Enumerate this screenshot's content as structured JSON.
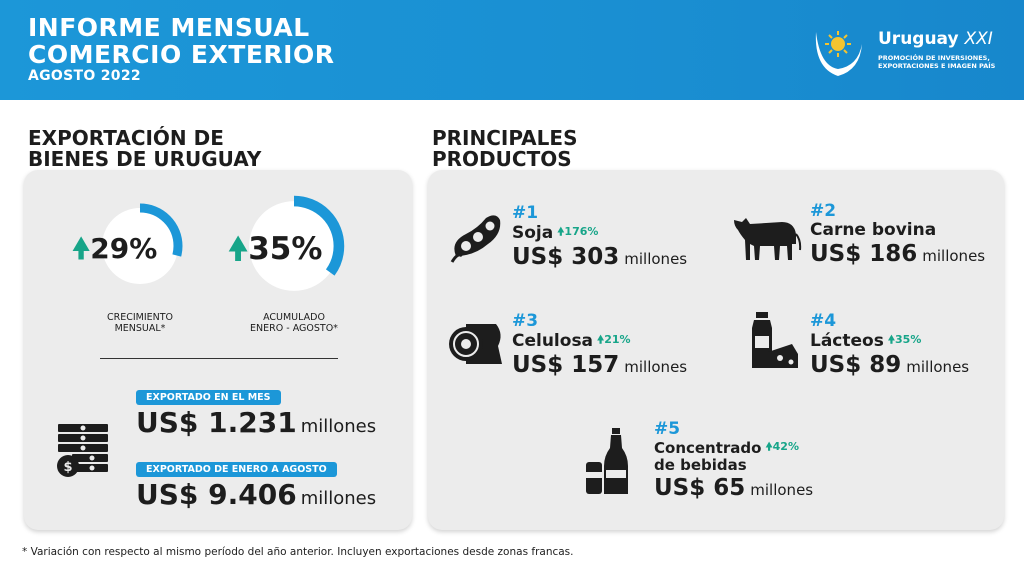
{
  "header": {
    "title_line1": "INFORME MENSUAL",
    "title_line2": "COMERCIO EXTERIOR",
    "subtitle": "AGOSTO 2022",
    "logo_name": "Uruguay",
    "logo_name_italic": "XXI",
    "logo_tag_line1": "PROMOCIÓN DE INVERSIONES,",
    "logo_tag_line2": "EXPORTACIONES E IMAGEN PAÍS"
  },
  "left": {
    "title_line1": "EXPORTACIÓN DE",
    "title_line2": "BIENES DE URUGUAY",
    "monthly": {
      "value": "29%",
      "fraction": 0.29,
      "caption_line1": "CRECIMIENTO",
      "caption_line2": "MENSUAL*"
    },
    "accumulated": {
      "value": "35%",
      "fraction": 0.35,
      "caption_line1": "ACUMULADO",
      "caption_line2": "ENERO - AGOSTO*"
    },
    "month_label": "EXPORTADO EN EL MES",
    "month_value": "US$ 1.231",
    "month_unit": "millones",
    "ytd_label": "EXPORTADO DE ENERO A AGOSTO",
    "ytd_value": "US$ 9.406",
    "ytd_unit": "millones"
  },
  "right": {
    "title_line1": "PRINCIPALES",
    "title_line2": "PRODUCTOS",
    "products": [
      {
        "rank": "#1",
        "name": "Soja",
        "pct": "176%",
        "value": "US$ 303",
        "unit": "millones",
        "icon": "soybean-icon"
      },
      {
        "rank": "#2",
        "name": "Carne bovina",
        "pct": "",
        "value": "US$ 186",
        "unit": "millones",
        "icon": "cow-icon"
      },
      {
        "rank": "#3",
        "name": "Celulosa",
        "pct": "21%",
        "value": "US$ 157",
        "unit": "millones",
        "icon": "paper-roll-icon"
      },
      {
        "rank": "#4",
        "name": "Lácteos",
        "pct": "35%",
        "value": "US$ 89",
        "unit": "millones",
        "icon": "milk-cheese-icon"
      },
      {
        "rank": "#5",
        "name_line1": "Concentrado",
        "name_line2": "de bebidas",
        "pct": "42%",
        "value": "US$ 65",
        "unit": "millones",
        "icon": "beverage-icon"
      }
    ]
  },
  "footnote": "* Variación con respecto al mismo período del año anterior. Incluyen exportaciones desde zonas francas.",
  "colors": {
    "brand_blue": "#1c97d8",
    "growth_green": "#17a589",
    "panel_gray": "#ececec"
  }
}
